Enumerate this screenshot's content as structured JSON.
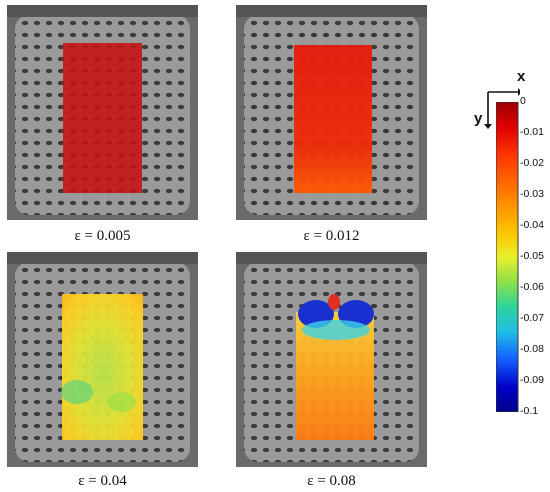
{
  "panels": [
    {
      "caption": "ε = 0.005",
      "field": "uniform-red"
    },
    {
      "caption": "ε = 0.012",
      "field": "red-orange"
    },
    {
      "caption": "ε = 0.04",
      "field": "yellow-green"
    },
    {
      "caption": "ε = 0.08",
      "field": "orange-with-blue-top"
    }
  ],
  "colorbar": {
    "ticks": [
      "0",
      "-0.01",
      "-0.02",
      "-0.03",
      "-0.04",
      "-0.05",
      "-0.06",
      "-0.07",
      "-0.08",
      "-0.09",
      "-0.1"
    ],
    "colors": [
      "#9b0000",
      "#e00000",
      "#ff3a00",
      "#ff7f00",
      "#ffc400",
      "#e8ef2a",
      "#8fe04a",
      "#2fd39a",
      "#1fbfe6",
      "#1460ff",
      "#0000c8",
      "#00008b"
    ]
  },
  "axes": {
    "x_label": "x",
    "y_label": "y"
  }
}
